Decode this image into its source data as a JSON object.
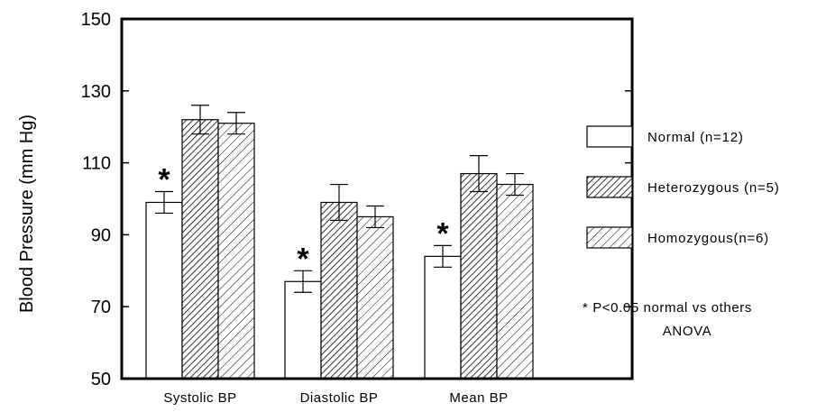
{
  "chart_data": {
    "type": "bar",
    "ylabel": "Blood Pressure (mm Hg)",
    "xlabel": "",
    "ylim": [
      50,
      150
    ],
    "yticks": [
      50,
      70,
      90,
      110,
      130,
      150
    ],
    "categories": [
      "Systolic BP",
      "Diastolic BP",
      "Mean BP"
    ],
    "series": [
      {
        "name": "Normal (n=12)",
        "values": [
          99,
          77,
          84
        ],
        "errors": [
          3,
          3,
          3
        ],
        "fill": "white"
      },
      {
        "name": "Heterozygous (n=5)",
        "values": [
          122,
          99,
          107
        ],
        "errors": [
          4,
          5,
          5
        ],
        "fill": "dense-hatch"
      },
      {
        "name": "Homozygous(n=6)",
        "values": [
          121,
          95,
          104
        ],
        "errors": [
          3,
          3,
          3
        ],
        "fill": "sparse-hatch"
      }
    ],
    "significance_marker": "*",
    "significant_bars": [
      [
        0,
        0
      ],
      [
        1,
        0
      ],
      [
        2,
        0
      ]
    ],
    "legend_position": "right",
    "grid": false,
    "note": [
      "* P<0.05 normal vs others",
      "ANOVA"
    ]
  }
}
